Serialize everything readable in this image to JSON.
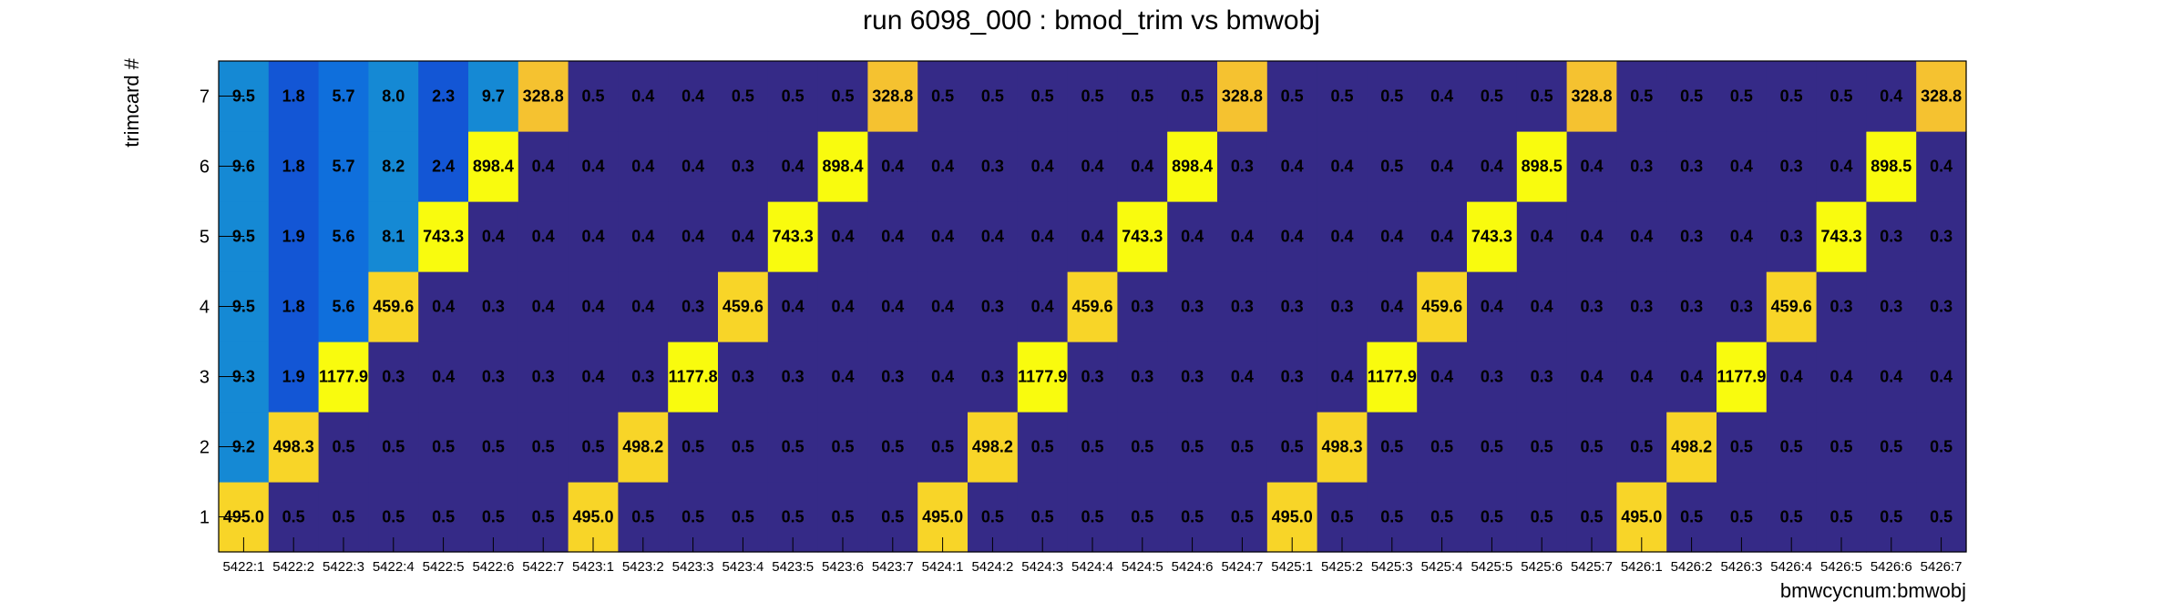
{
  "chart_data": {
    "type": "heatmap",
    "title": "run 6098_000 : bmod_trim vs bmwobj",
    "xlabel": "bmwcycnum:bmwobj",
    "ylabel": "trimcard #",
    "x_categories": [
      "5422:1",
      "5422:2",
      "5422:3",
      "5422:4",
      "5422:5",
      "5422:6",
      "5422:7",
      "5423:1",
      "5423:2",
      "5423:3",
      "5423:4",
      "5423:5",
      "5423:6",
      "5423:7",
      "5424:1",
      "5424:2",
      "5424:3",
      "5424:4",
      "5424:5",
      "5424:6",
      "5424:7",
      "5425:1",
      "5425:2",
      "5425:3",
      "5425:4",
      "5425:5",
      "5425:6",
      "5425:7",
      "5426:1",
      "5426:2",
      "5426:3",
      "5426:4",
      "5426:5",
      "5426:6",
      "5426:7"
    ],
    "y_categories": [
      "1",
      "2",
      "3",
      "4",
      "5",
      "6",
      "7"
    ],
    "color_palette": [
      "#352a87",
      "#2a3aa8",
      "#1356d5",
      "#0f6fdc",
      "#1589d4",
      "#0a9dc8",
      "#14acb9",
      "#38b49c",
      "#6cb97c",
      "#a0bc5a",
      "#cfbb3c",
      "#f5c230",
      "#f8d528",
      "#f9fb0e"
    ],
    "color_max": 1177.9,
    "values": [
      [
        495.0,
        0.5,
        0.5,
        0.5,
        0.5,
        0.5,
        0.5,
        495.0,
        0.5,
        0.5,
        0.5,
        0.5,
        0.5,
        0.5,
        495.0,
        0.5,
        0.5,
        0.5,
        0.5,
        0.5,
        0.5,
        495.0,
        0.5,
        0.5,
        0.5,
        0.5,
        0.5,
        0.5,
        495.0,
        0.5,
        0.5,
        0.5,
        0.5,
        0.5,
        0.5
      ],
      [
        9.2,
        498.3,
        0.5,
        0.5,
        0.5,
        0.5,
        0.5,
        0.5,
        498.2,
        0.5,
        0.5,
        0.5,
        0.5,
        0.5,
        0.5,
        498.2,
        0.5,
        0.5,
        0.5,
        0.5,
        0.5,
        0.5,
        498.3,
        0.5,
        0.5,
        0.5,
        0.5,
        0.5,
        0.5,
        498.2,
        0.5,
        0.5,
        0.5,
        0.5,
        0.5
      ],
      [
        9.3,
        1.9,
        1177.9,
        0.3,
        0.4,
        0.3,
        0.3,
        0.4,
        0.3,
        1177.8,
        0.3,
        0.3,
        0.4,
        0.3,
        0.4,
        0.3,
        1177.9,
        0.3,
        0.3,
        0.3,
        0.4,
        0.3,
        0.4,
        1177.9,
        0.4,
        0.3,
        0.3,
        0.4,
        0.4,
        0.4,
        1177.9,
        0.4,
        0.4,
        0.4,
        0.4
      ],
      [
        9.5,
        1.8,
        5.6,
        459.6,
        0.4,
        0.3,
        0.4,
        0.4,
        0.4,
        0.3,
        459.6,
        0.4,
        0.4,
        0.4,
        0.4,
        0.3,
        0.4,
        459.6,
        0.3,
        0.3,
        0.3,
        0.3,
        0.3,
        0.4,
        459.6,
        0.4,
        0.4,
        0.3,
        0.3,
        0.3,
        0.3,
        459.6,
        0.3,
        0.3,
        0.3
      ],
      [
        9.5,
        1.9,
        5.6,
        8.1,
        743.3,
        0.4,
        0.4,
        0.4,
        0.4,
        0.4,
        0.4,
        743.3,
        0.4,
        0.4,
        0.4,
        0.4,
        0.4,
        0.4,
        743.3,
        0.4,
        0.4,
        0.4,
        0.4,
        0.4,
        0.4,
        743.3,
        0.4,
        0.4,
        0.4,
        0.3,
        0.4,
        0.3,
        743.3,
        0.3,
        0.3
      ],
      [
        9.6,
        1.8,
        5.7,
        8.2,
        2.4,
        898.4,
        0.4,
        0.4,
        0.4,
        0.4,
        0.3,
        0.4,
        898.4,
        0.4,
        0.4,
        0.3,
        0.4,
        0.4,
        0.4,
        898.4,
        0.3,
        0.4,
        0.4,
        0.5,
        0.4,
        0.4,
        898.5,
        0.4,
        0.3,
        0.3,
        0.4,
        0.3,
        0.4,
        898.5,
        0.4
      ],
      [
        9.5,
        1.8,
        5.7,
        8.0,
        2.3,
        9.7,
        328.8,
        0.5,
        0.4,
        0.4,
        0.5,
        0.5,
        0.5,
        328.8,
        0.5,
        0.5,
        0.5,
        0.5,
        0.5,
        0.5,
        328.8,
        0.5,
        0.5,
        0.5,
        0.4,
        0.5,
        0.5,
        328.8,
        0.5,
        0.5,
        0.5,
        0.5,
        0.5,
        0.4,
        328.8
      ]
    ]
  }
}
